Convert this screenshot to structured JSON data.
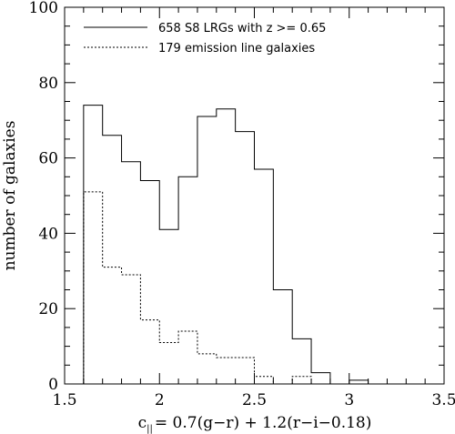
{
  "chart_data": {
    "type": "histogram",
    "xlabel": {
      "pre": "c",
      "sub": "||",
      "post": "= 0.7(g−r) + 1.2(r−i−0.18)"
    },
    "ylabel": "number of galaxies",
    "xlim": [
      1.5,
      3.5
    ],
    "ylim": [
      0,
      100
    ],
    "x_ticks": [
      1.5,
      2,
      2.5,
      3,
      3.5
    ],
    "x_tick_labels": [
      "1.5",
      "2",
      "2.5",
      "3",
      "3.5"
    ],
    "y_ticks": [
      0,
      20,
      40,
      60,
      80,
      100
    ],
    "y_tick_labels": [
      "0",
      "20",
      "40",
      "60",
      "80",
      "100"
    ],
    "x_minor_step": 0.1,
    "y_minor_step": 5,
    "bin_edges": [
      1.6,
      1.7,
      1.8,
      1.9,
      2.0,
      2.1,
      2.2,
      2.3,
      2.4,
      2.5,
      2.6,
      2.7,
      2.8,
      2.9,
      3.0,
      3.1
    ],
    "legend_position": "top-left",
    "series": [
      {
        "name": "658 S8 LRGs with z >= 0.65",
        "style": "solid",
        "color": "#000000",
        "counts": [
          74,
          66,
          59,
          54,
          41,
          55,
          71,
          73,
          67,
          57,
          25,
          12,
          3,
          0,
          1
        ]
      },
      {
        "name": "179 emission line galaxies",
        "style": "dotted",
        "color": "#000000",
        "counts": [
          51,
          31,
          29,
          17,
          11,
          14,
          8,
          7,
          7,
          2,
          0,
          2,
          0,
          0,
          0
        ]
      }
    ]
  }
}
